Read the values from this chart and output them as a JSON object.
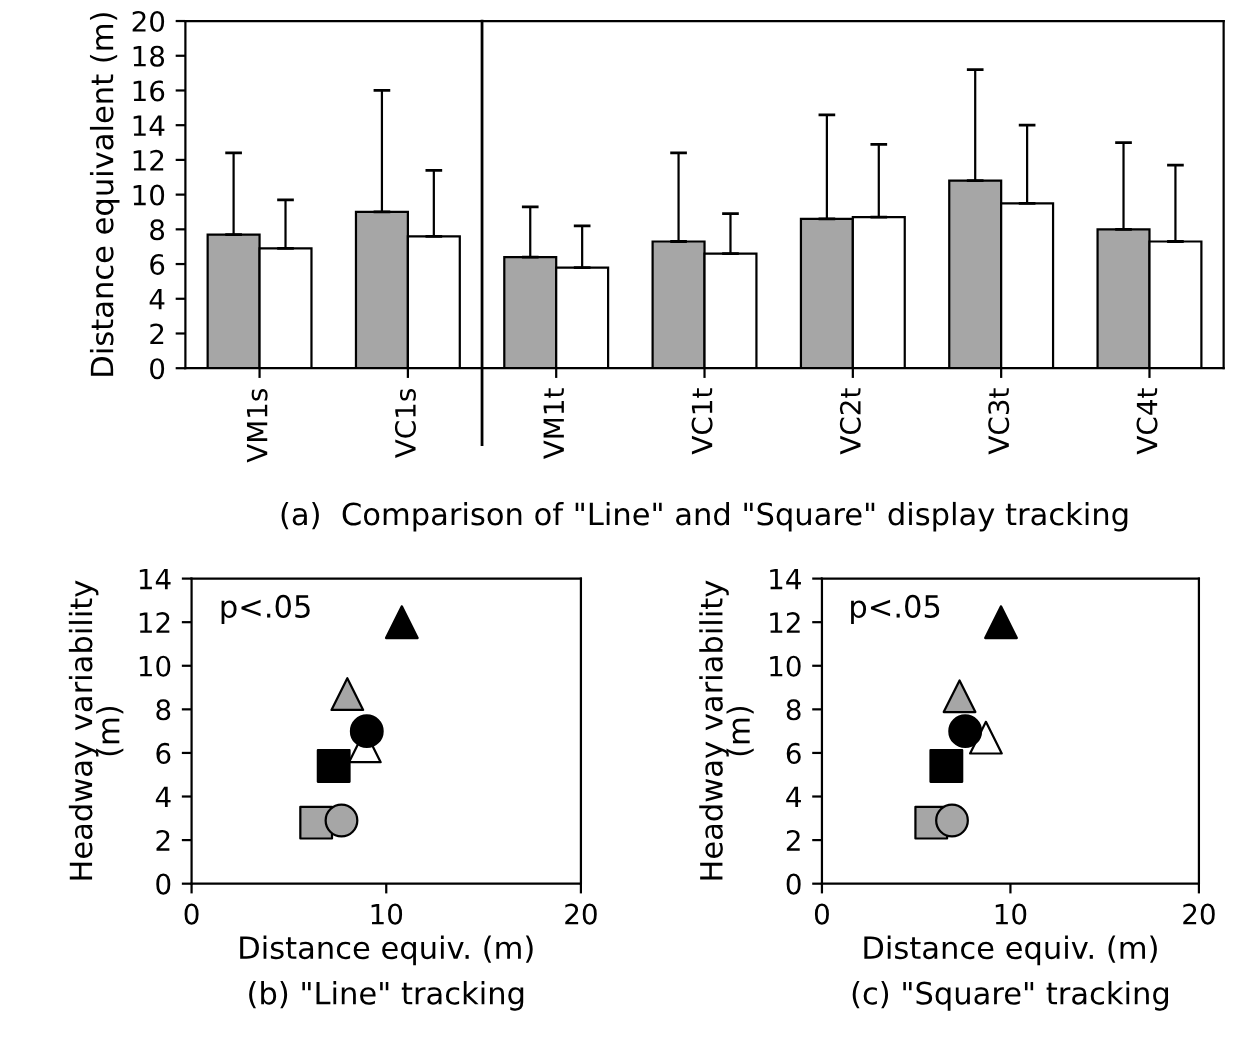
{
  "chart_data": [
    {
      "type": "bar",
      "title": "(a)  Comparison of \"Line\" and \"Square\" display tracking",
      "ylabel": "Distance equivalent (m)",
      "categories": [
        "VM1s",
        "VC1s",
        "VM1t",
        "VC1t",
        "VC2t",
        "VC3t",
        "VC4t"
      ],
      "series": [
        {
          "color": "#a6a6a6",
          "values": [
            7.7,
            9.0,
            6.4,
            7.3,
            8.6,
            10.8,
            8.0
          ],
          "errors": [
            [
              7.7,
              12.4
            ],
            [
              9.0,
              16.0
            ],
            [
              6.4,
              9.3
            ],
            [
              7.3,
              12.4
            ],
            [
              8.6,
              14.6
            ],
            [
              10.8,
              17.2
            ],
            [
              8.0,
              13.0
            ]
          ]
        },
        {
          "color": "#ffffff",
          "values": [
            6.9,
            7.6,
            5.8,
            6.6,
            8.7,
            9.5,
            7.3
          ],
          "errors": [
            [
              6.9,
              9.7
            ],
            [
              7.6,
              11.4
            ],
            [
              5.8,
              8.2
            ],
            [
              6.6,
              8.9
            ],
            [
              8.7,
              12.9
            ],
            [
              9.5,
              14.0
            ],
            [
              7.3,
              11.7
            ]
          ]
        }
      ],
      "ylim": [
        0,
        20
      ],
      "yticks": [
        0,
        2,
        4,
        6,
        8,
        10,
        12,
        14,
        16,
        18,
        20
      ],
      "grid": false,
      "legend": false
    },
    {
      "type": "scatter",
      "title": "(b) \"Line\" tracking",
      "xlabel": "Distance equiv. (m)",
      "ylabel": "Headway variability\n(m)",
      "annotations": [
        "p<.05"
      ],
      "series": [
        {
          "marker": "triangle",
          "color": "#a6a6a6",
          "x": [
            8.0
          ],
          "values": [
            8.7
          ]
        },
        {
          "marker": "triangle",
          "color": "#ffffff",
          "x": [
            8.9
          ],
          "values": [
            6.3
          ]
        },
        {
          "marker": "circle",
          "color": "#000000",
          "x": [
            9.0
          ],
          "values": [
            7.0
          ]
        },
        {
          "marker": "square",
          "color": "#000000",
          "x": [
            7.3
          ],
          "values": [
            5.4
          ]
        },
        {
          "marker": "square",
          "color": "#a6a6a6",
          "x": [
            6.4
          ],
          "values": [
            2.8
          ]
        },
        {
          "marker": "circle",
          "color": "#a6a6a6",
          "x": [
            7.7
          ],
          "values": [
            2.9
          ]
        },
        {
          "marker": "triangle",
          "color": "#000000",
          "x": [
            10.8
          ],
          "values": [
            12.0
          ]
        }
      ],
      "xlim": [
        0,
        20
      ],
      "xticks": [
        0,
        10,
        20
      ],
      "ylim": [
        0,
        14
      ],
      "yticks": [
        0,
        2,
        4,
        6,
        8,
        10,
        12,
        14
      ],
      "grid": false,
      "legend": false
    },
    {
      "type": "scatter",
      "title": "(c) \"Square\" tracking",
      "xlabel": "Distance equiv. (m)",
      "ylabel": "Headway variability\n(m)",
      "annotations": [
        "p<.05"
      ],
      "series": [
        {
          "marker": "triangle",
          "color": "#a6a6a6",
          "x": [
            7.3
          ],
          "values": [
            8.6
          ]
        },
        {
          "marker": "triangle",
          "color": "#ffffff",
          "x": [
            8.7
          ],
          "values": [
            6.7
          ]
        },
        {
          "marker": "circle",
          "color": "#000000",
          "x": [
            7.6
          ],
          "values": [
            7.0
          ]
        },
        {
          "marker": "square",
          "color": "#000000",
          "x": [
            6.6
          ],
          "values": [
            5.4
          ]
        },
        {
          "marker": "square",
          "color": "#a6a6a6",
          "x": [
            5.8
          ],
          "values": [
            2.8
          ]
        },
        {
          "marker": "circle",
          "color": "#a6a6a6",
          "x": [
            6.9
          ],
          "values": [
            2.9
          ]
        },
        {
          "marker": "triangle",
          "color": "#000000",
          "x": [
            9.5
          ],
          "values": [
            12.0
          ]
        }
      ],
      "xlim": [
        0,
        20
      ],
      "xticks": [
        0,
        10,
        20
      ],
      "ylim": [
        0,
        14
      ],
      "yticks": [
        0,
        2,
        4,
        6,
        8,
        10,
        12,
        14
      ],
      "grid": false,
      "legend": false
    }
  ]
}
